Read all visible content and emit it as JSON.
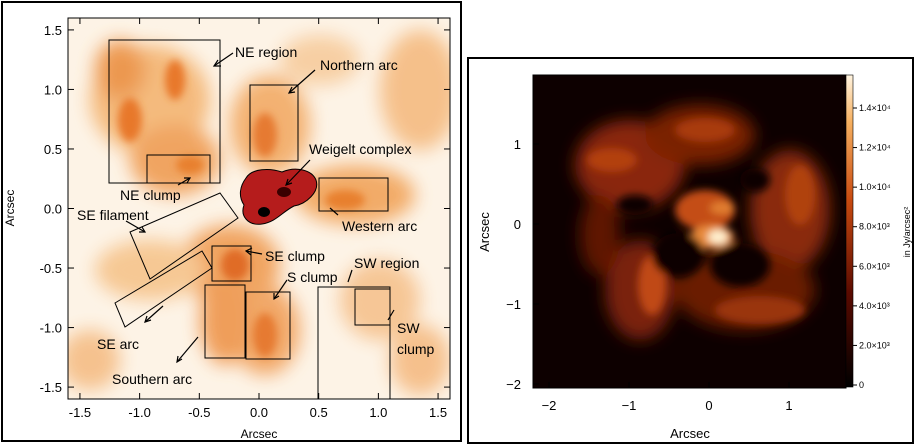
{
  "left_panel": {
    "xlabel": "Arcsec",
    "ylabel": "Arcsec",
    "x_ticks": [
      "-1.5",
      "-1.0",
      "-0.5",
      "0.0",
      "0.5",
      "1.0",
      "1.5"
    ],
    "y_ticks": [
      "1.5",
      "1.0",
      "0.5",
      "0.0",
      "-0.5",
      "-1.0",
      "-1.5"
    ],
    "regions": {
      "ne_region": "NE region",
      "northern_arc": "Northern arc",
      "weigelt_complex": "Weigelt complex",
      "ne_clump": "NE clump",
      "se_filament": "SE filament",
      "western_arc": "Western arc",
      "se_clump": "SE clump",
      "s_clump": "S clump",
      "sw_region": "SW region",
      "sw": "SW",
      "clump": "clump",
      "se_arc": "SE arc",
      "southern_arc": "Southern arc"
    }
  },
  "right_panel": {
    "xlabel": "Arcsec",
    "ylabel": "Arcsec",
    "x_ticks": [
      "−2",
      "−1",
      "0",
      "1"
    ],
    "y_ticks": [
      "1",
      "0",
      "−1",
      "−2"
    ],
    "colorbar_label": "in Jy/arcsec²",
    "colorbar_ticks": [
      "1.4×10⁴",
      "1.2×10⁴",
      "1.0×10⁴",
      "8.0×10³",
      "6.0×10³",
      "4.0×10³",
      "2.0×10³",
      "0"
    ]
  },
  "colors": {
    "left_bg": "#fdf3e6",
    "emission": "#ea8a3c",
    "weigelt": "#b01818",
    "right_bg": "#0d0000",
    "right_glow": "#c0501a"
  }
}
